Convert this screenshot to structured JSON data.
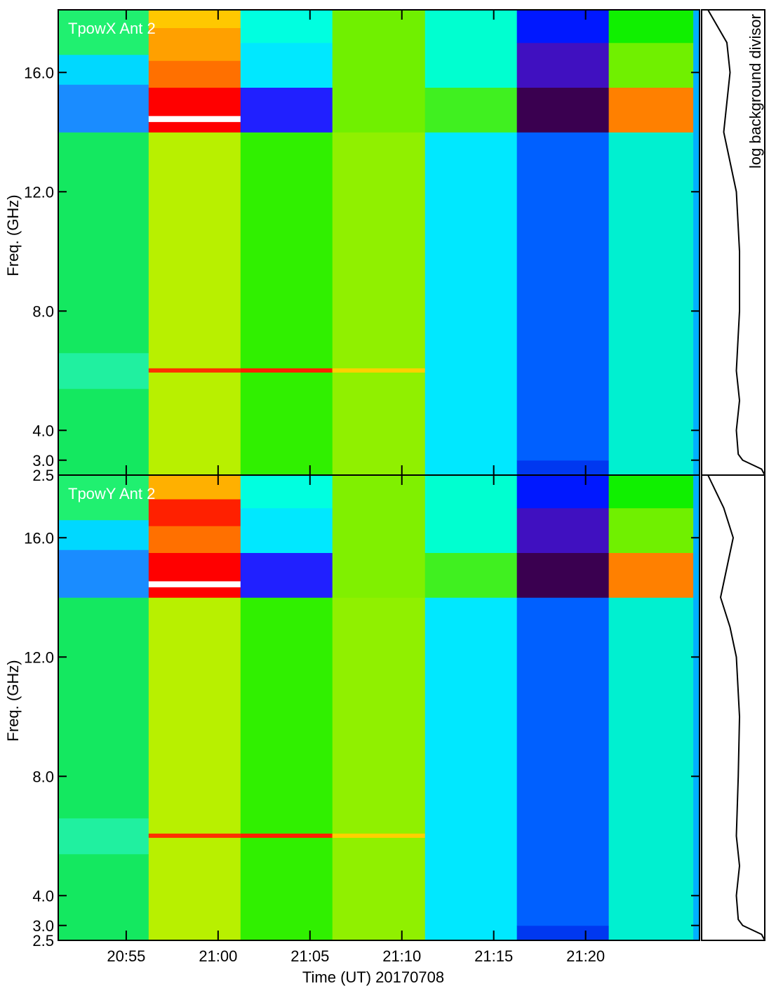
{
  "chart_data": [
    {
      "type": "heatmap",
      "title": "TpowX Ant 2",
      "ylabel": "Freq. (GHz)",
      "profile_label": "log background divisor",
      "ylim": [
        2.5,
        18.1
      ],
      "yticks": [
        {
          "value": 2.5,
          "label": "2.5"
        },
        {
          "value": 3,
          "label": "3.0"
        },
        {
          "value": 4,
          "label": "4.0"
        },
        {
          "value": 8,
          "label": "8.0"
        },
        {
          "value": 12,
          "label": "12.0"
        },
        {
          "value": 16,
          "label": "16.0"
        }
      ],
      "xlim": [
        1251.3,
        1286.2
      ],
      "segments": [
        {
          "start": 1251.3,
          "end": 1256.22,
          "bands": [
            [
              2.5,
              5.4,
              "#14e860"
            ],
            [
              5.4,
              6.6,
              "#20f0a0"
            ],
            [
              6.6,
              14,
              "#14e860"
            ],
            [
              14,
              15.6,
              "#1a8cff"
            ],
            [
              15.6,
              16.6,
              "#00d8ff"
            ],
            [
              16.6,
              18.1,
              "#20f070"
            ]
          ]
        },
        {
          "start": 1256.22,
          "end": 1261.22,
          "bands": [
            [
              2.5,
              14,
              "#b8f000"
            ],
            [
              5.95,
              6.08,
              "#ff3000"
            ],
            [
              14,
              14.35,
              "#ff0000"
            ],
            [
              14.35,
              14.55,
              "#ffffff"
            ],
            [
              14.55,
              15.5,
              "#ff0000"
            ],
            [
              15.5,
              16.4,
              "#ff7000"
            ],
            [
              16.4,
              17.5,
              "#ffa000"
            ],
            [
              17.5,
              18.1,
              "#ffc800"
            ]
          ]
        },
        {
          "start": 1261.22,
          "end": 1266.22,
          "bands": [
            [
              2.5,
              14,
              "#30f000"
            ],
            [
              5.95,
              6.08,
              "#ff2000"
            ],
            [
              14,
              15.5,
              "#2020ff"
            ],
            [
              15.5,
              17,
              "#00e8ff"
            ],
            [
              17,
              18.1,
              "#00ffe0"
            ]
          ]
        },
        {
          "start": 1266.22,
          "end": 1271.26,
          "bands": [
            [
              2.5,
              14,
              "#90f000"
            ],
            [
              5.95,
              6.08,
              "#ffd000"
            ],
            [
              14,
              18.1,
              "#70f000"
            ]
          ]
        },
        {
          "start": 1271.26,
          "end": 1276.26,
          "bands": [
            [
              2.5,
              14,
              "#00e8ff"
            ],
            [
              14,
              15.5,
              "#40f020"
            ],
            [
              15.5,
              18.1,
              "#00ffd0"
            ]
          ]
        },
        {
          "start": 1276.26,
          "end": 1281.26,
          "bands": [
            [
              2.5,
              3.0,
              "#0038f0"
            ],
            [
              3.0,
              14,
              "#0060ff"
            ],
            [
              14,
              15.5,
              "#3a0050"
            ],
            [
              15.5,
              17,
              "#4010c0"
            ],
            [
              17,
              18.1,
              "#0018ff"
            ]
          ]
        },
        {
          "start": 1281.26,
          "end": 1285.86,
          "bands": [
            [
              2.5,
              14,
              "#00f0d0"
            ],
            [
              14,
              15.5,
              "#ff8000"
            ],
            [
              15.5,
              17,
              "#70f000"
            ],
            [
              17,
              18.1,
              "#10f000"
            ]
          ]
        },
        {
          "start": 1285.86,
          "end": 1286.2,
          "bands": [
            [
              2.5,
              18.1,
              "#00b0ff"
            ]
          ]
        }
      ],
      "profile_xlim": [
        0,
        1
      ],
      "profile": {
        "freq": [
          18.1,
          17,
          16,
          15,
          14,
          13,
          12,
          10,
          8,
          6,
          5,
          4,
          3.2,
          3.0,
          2.7,
          2.5
        ],
        "values": [
          0.1,
          0.4,
          0.45,
          0.4,
          0.35,
          0.45,
          0.55,
          0.6,
          0.6,
          0.55,
          0.6,
          0.55,
          0.58,
          0.65,
          0.95,
          1.0
        ]
      }
    },
    {
      "type": "heatmap",
      "title": "TpowY Ant 2",
      "ylabel": "Freq. (GHz)",
      "xlabel": "Time (UT) 20170708",
      "ylim": [
        2.5,
        18.1
      ],
      "yticks": [
        {
          "value": 2.5,
          "label": "2.5"
        },
        {
          "value": 3,
          "label": "3.0"
        },
        {
          "value": 4,
          "label": "4.0"
        },
        {
          "value": 8,
          "label": "8.0"
        },
        {
          "value": 12,
          "label": "12.0"
        },
        {
          "value": 16,
          "label": "16.0"
        }
      ],
      "xlim": [
        1251.3,
        1286.2
      ],
      "xticks": [
        {
          "value": 1255,
          "label": "20:55"
        },
        {
          "value": 1260,
          "label": "21:00"
        },
        {
          "value": 1265,
          "label": "21:05"
        },
        {
          "value": 1270,
          "label": "21:10"
        },
        {
          "value": 1275,
          "label": "21:15"
        },
        {
          "value": 1280,
          "label": "21:20"
        }
      ],
      "segments": [
        {
          "start": 1251.3,
          "end": 1256.22,
          "bands": [
            [
              2.5,
              5.4,
              "#14e860"
            ],
            [
              5.4,
              6.6,
              "#20f0a0"
            ],
            [
              6.6,
              14,
              "#14e860"
            ],
            [
              14,
              15.6,
              "#1a8cff"
            ],
            [
              15.6,
              16.6,
              "#00d8ff"
            ],
            [
              16.6,
              18.1,
              "#20f070"
            ]
          ]
        },
        {
          "start": 1256.22,
          "end": 1261.22,
          "bands": [
            [
              2.5,
              14,
              "#b8f000"
            ],
            [
              5.95,
              6.08,
              "#ff3000"
            ],
            [
              14,
              14.35,
              "#ff0000"
            ],
            [
              14.35,
              14.55,
              "#ffffff"
            ],
            [
              14.55,
              15.5,
              "#ff0000"
            ],
            [
              15.5,
              16.4,
              "#ff7000"
            ],
            [
              16.4,
              17.3,
              "#ff2000"
            ],
            [
              17.3,
              18.1,
              "#ffb000"
            ]
          ]
        },
        {
          "start": 1261.22,
          "end": 1266.22,
          "bands": [
            [
              2.5,
              14,
              "#30f000"
            ],
            [
              5.95,
              6.08,
              "#ff2000"
            ],
            [
              14,
              15.5,
              "#2020ff"
            ],
            [
              15.5,
              17,
              "#00e8ff"
            ],
            [
              17,
              18.1,
              "#00ffe0"
            ]
          ]
        },
        {
          "start": 1266.22,
          "end": 1271.26,
          "bands": [
            [
              2.5,
              14,
              "#90f000"
            ],
            [
              5.95,
              6.08,
              "#ffd000"
            ],
            [
              14,
              18.1,
              "#80f000"
            ]
          ]
        },
        {
          "start": 1271.26,
          "end": 1276.26,
          "bands": [
            [
              2.5,
              14,
              "#00e8ff"
            ],
            [
              14,
              15.5,
              "#40f020"
            ],
            [
              15.5,
              18.1,
              "#00ffd0"
            ]
          ]
        },
        {
          "start": 1276.26,
          "end": 1281.26,
          "bands": [
            [
              2.5,
              3.0,
              "#0038f0"
            ],
            [
              3.0,
              14,
              "#0060ff"
            ],
            [
              14,
              15.5,
              "#3a0050"
            ],
            [
              15.5,
              17,
              "#4010c0"
            ],
            [
              17,
              18.1,
              "#0018ff"
            ]
          ]
        },
        {
          "start": 1281.26,
          "end": 1285.86,
          "bands": [
            [
              2.5,
              14,
              "#00f0d0"
            ],
            [
              14,
              15.5,
              "#ff8000"
            ],
            [
              15.5,
              17,
              "#70f000"
            ],
            [
              17,
              18.1,
              "#10f000"
            ]
          ]
        },
        {
          "start": 1285.86,
          "end": 1286.2,
          "bands": [
            [
              2.5,
              18.1,
              "#00b0ff"
            ]
          ]
        }
      ],
      "profile_xlim": [
        0,
        1
      ],
      "profile": {
        "freq": [
          18.1,
          17,
          16,
          15,
          14,
          13,
          12,
          10,
          8,
          6,
          5,
          4,
          3.2,
          3.0,
          2.7,
          2.5
        ],
        "values": [
          0.1,
          0.35,
          0.5,
          0.4,
          0.3,
          0.45,
          0.55,
          0.6,
          0.58,
          0.55,
          0.6,
          0.55,
          0.58,
          0.65,
          0.95,
          1.0
        ]
      }
    }
  ]
}
